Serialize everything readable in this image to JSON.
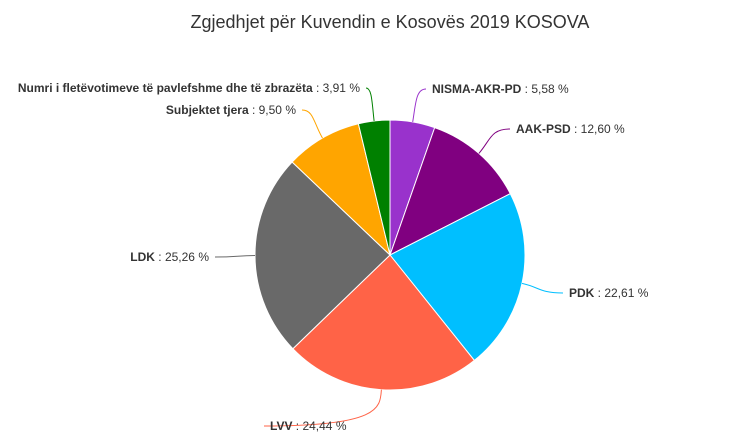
{
  "chart_data": {
    "type": "pie",
    "title": "Zgjedhjet për Kuvendin e Kosovës 2019 KOSOVA",
    "label_separator": " : ",
    "unit": " %",
    "slices": [
      {
        "name": "NISMA-AKR-PD",
        "value": 5.58,
        "display": "5,58",
        "color": "#9932CC"
      },
      {
        "name": "AAK-PSD",
        "value": 12.6,
        "display": "12,60",
        "color": "#800080"
      },
      {
        "name": "PDK",
        "value": 22.61,
        "display": "22,61",
        "color": "#00BFFF"
      },
      {
        "name": "LVV",
        "value": 24.44,
        "display": "24,44",
        "color": "#FF6347"
      },
      {
        "name": "LDK",
        "value": 25.26,
        "display": "25,26",
        "color": "#696969"
      },
      {
        "name": "Subjektet tjera",
        "value": 9.5,
        "display": "9,50",
        "color": "#FFA500"
      },
      {
        "name": "Numri i fletëvotimeve të pavlefshme dhe të zbrazëta",
        "value": 3.91,
        "display": "3,91",
        "color": "#008000"
      }
    ]
  }
}
